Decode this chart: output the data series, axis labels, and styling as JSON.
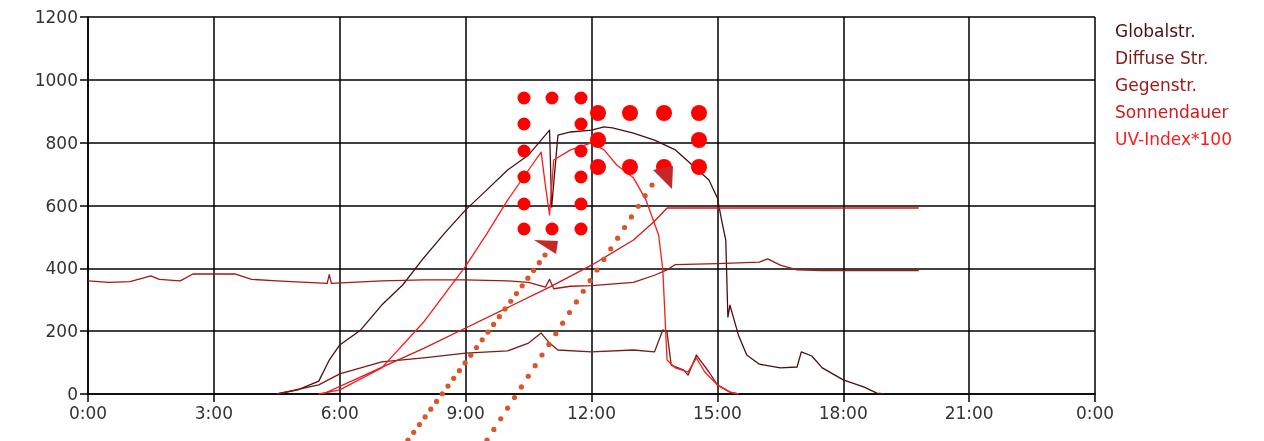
{
  "chart_data": {
    "type": "line",
    "xlim": [
      0,
      24
    ],
    "xticks": [
      {
        "value": 0,
        "label": "0:00"
      },
      {
        "value": 3,
        "label": "3:00"
      },
      {
        "value": 6,
        "label": "6:00"
      },
      {
        "value": 9,
        "label": "9:00"
      },
      {
        "value": 12,
        "label": "12:00"
      },
      {
        "value": 15,
        "label": "15:00"
      },
      {
        "value": 18,
        "label": "18:00"
      },
      {
        "value": 21,
        "label": "21:00"
      },
      {
        "value": 24,
        "label": "0:00"
      }
    ],
    "ylim": [
      0,
      1200
    ],
    "yticks": [
      0,
      200,
      400,
      600,
      800,
      1000,
      1200
    ],
    "grid": true,
    "legend": "right",
    "marker": "none",
    "line_style": "solid",
    "series": [
      {
        "name": "Globalstr.",
        "color": "#4a1010",
        "x": [
          4.5,
          5,
          5.5,
          5.75,
          6,
          6.5,
          7,
          7.5,
          8,
          8.5,
          9,
          9.5,
          10,
          10.5,
          10.8,
          11,
          11.05,
          11.2,
          11.5,
          12,
          12.3,
          12.5,
          13,
          13.5,
          14,
          14.8,
          15,
          15.1,
          15.2,
          15.25,
          15.3,
          15.5,
          15.7,
          16,
          16.5,
          16.9,
          17,
          17.25,
          17.5,
          18,
          18.5,
          18.8,
          19
        ],
        "values": [
          0,
          13,
          41,
          108,
          156,
          204,
          283,
          347,
          433,
          512,
          586,
          649,
          713,
          761,
          808,
          840,
          595,
          824,
          834,
          840,
          850,
          847,
          830,
          808,
          777,
          681,
          624,
          554,
          490,
          245,
          283,
          188,
          124,
          95,
          83,
          86,
          134,
          121,
          83,
          45,
          22,
          3,
          0
        ]
      },
      {
        "name": "Diffuse Str.",
        "color": "#7a1a1a",
        "x": [
          4.5,
          5.5,
          6,
          7,
          8,
          9,
          10,
          10.5,
          10.8,
          11,
          11.2,
          12,
          13,
          13.5,
          13.7,
          13.8,
          13.9,
          14.2,
          14.3,
          14.5,
          14.8,
          15,
          15.3,
          15.5
        ],
        "values": [
          0,
          29,
          64,
          102,
          115,
          130,
          137,
          162,
          194,
          162,
          140,
          134,
          140,
          134,
          204,
          197,
          92,
          76,
          60,
          124,
          70,
          29,
          6,
          0
        ]
      },
      {
        "name": "Gegenstr.",
        "color": "#a01818",
        "x": [
          0,
          0.5,
          1,
          1.5,
          1.7,
          2.2,
          2.5,
          3.5,
          3.9,
          4.5,
          5.7,
          5.75,
          5.8,
          7,
          8,
          9,
          10,
          10.5,
          10.9,
          11,
          11.1,
          11.5,
          12,
          13,
          13.5,
          13.8,
          14,
          15,
          16,
          16.2,
          16.5,
          16.9,
          17.5,
          19.8
        ],
        "values": [
          360,
          355,
          358,
          376,
          365,
          360,
          382,
          382,
          365,
          360,
          352,
          380,
          352,
          360,
          363,
          363,
          360,
          355,
          340,
          365,
          335,
          343,
          345,
          355,
          378,
          395,
          412,
          415,
          420,
          430,
          410,
          395,
          393,
          393
        ]
      },
      {
        "name": "Sonnendauer",
        "color": "#d01818",
        "x": [
          5.6,
          7,
          8,
          9,
          10,
          11,
          12,
          13,
          13.5,
          13.8,
          19.8
        ],
        "values": [
          0,
          85,
          145,
          210,
          275,
          340,
          410,
          490,
          550,
          592,
          592
        ]
      },
      {
        "name": "UV-Index*100",
        "color": "#ff1a1a",
        "x": [
          5.5,
          6,
          7,
          8,
          9,
          9.5,
          10,
          10.5,
          10.8,
          10.9,
          11,
          11.1,
          11.5,
          12,
          12.3,
          12.6,
          13,
          13.3,
          13.6,
          13.7,
          13.8,
          14,
          14.3,
          14.5,
          14.7,
          15,
          15.3,
          15.5
        ],
        "values": [
          0,
          13,
          83,
          229,
          407,
          509,
          617,
          713,
          770,
          665,
          570,
          745,
          777,
          799,
          777,
          729,
          688,
          617,
          506,
          395,
          108,
          83,
          70,
          115,
          70,
          29,
          6,
          0
        ]
      }
    ]
  }
}
